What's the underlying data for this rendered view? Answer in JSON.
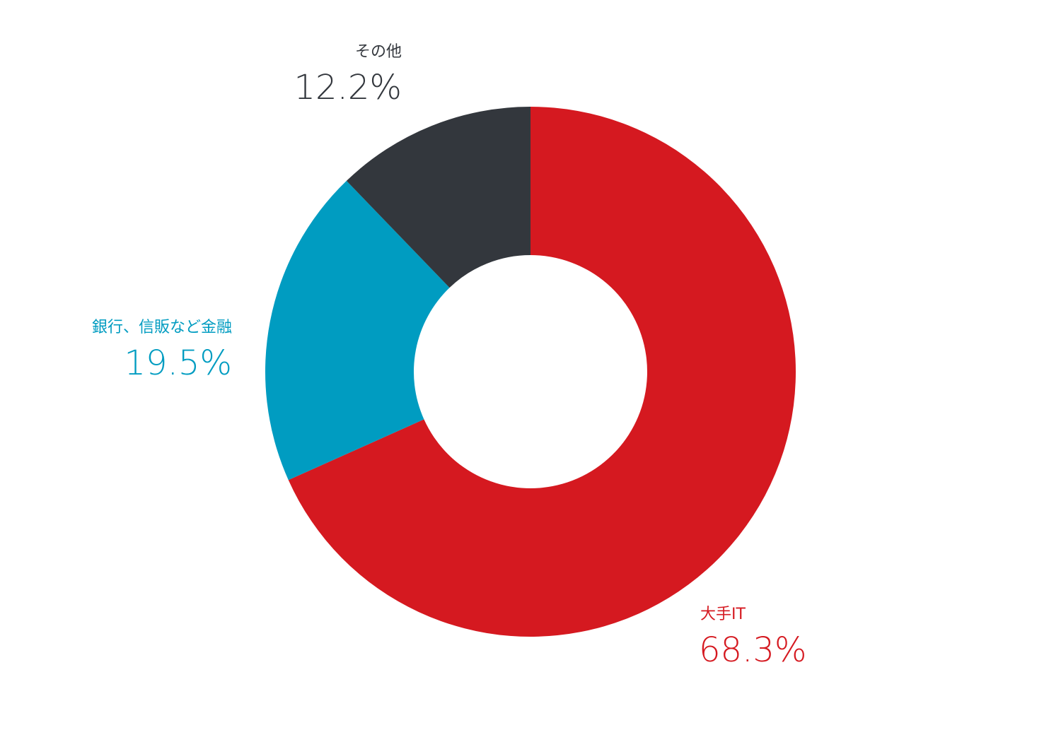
{
  "chart_data": {
    "type": "pie",
    "variant": "donut",
    "slices": [
      {
        "label": "大手IT",
        "value": 68.3,
        "value_label": "68.3%",
        "color": "#d51920"
      },
      {
        "label": "銀行、信販など金融",
        "value": 19.5,
        "value_label": "19.5%",
        "color": "#009cc1"
      },
      {
        "label": "その他",
        "value": 12.2,
        "value_label": "12.2%",
        "color": "#33373d"
      }
    ],
    "start": "12 o'clock",
    "direction": "clockwise",
    "legend": "none"
  }
}
